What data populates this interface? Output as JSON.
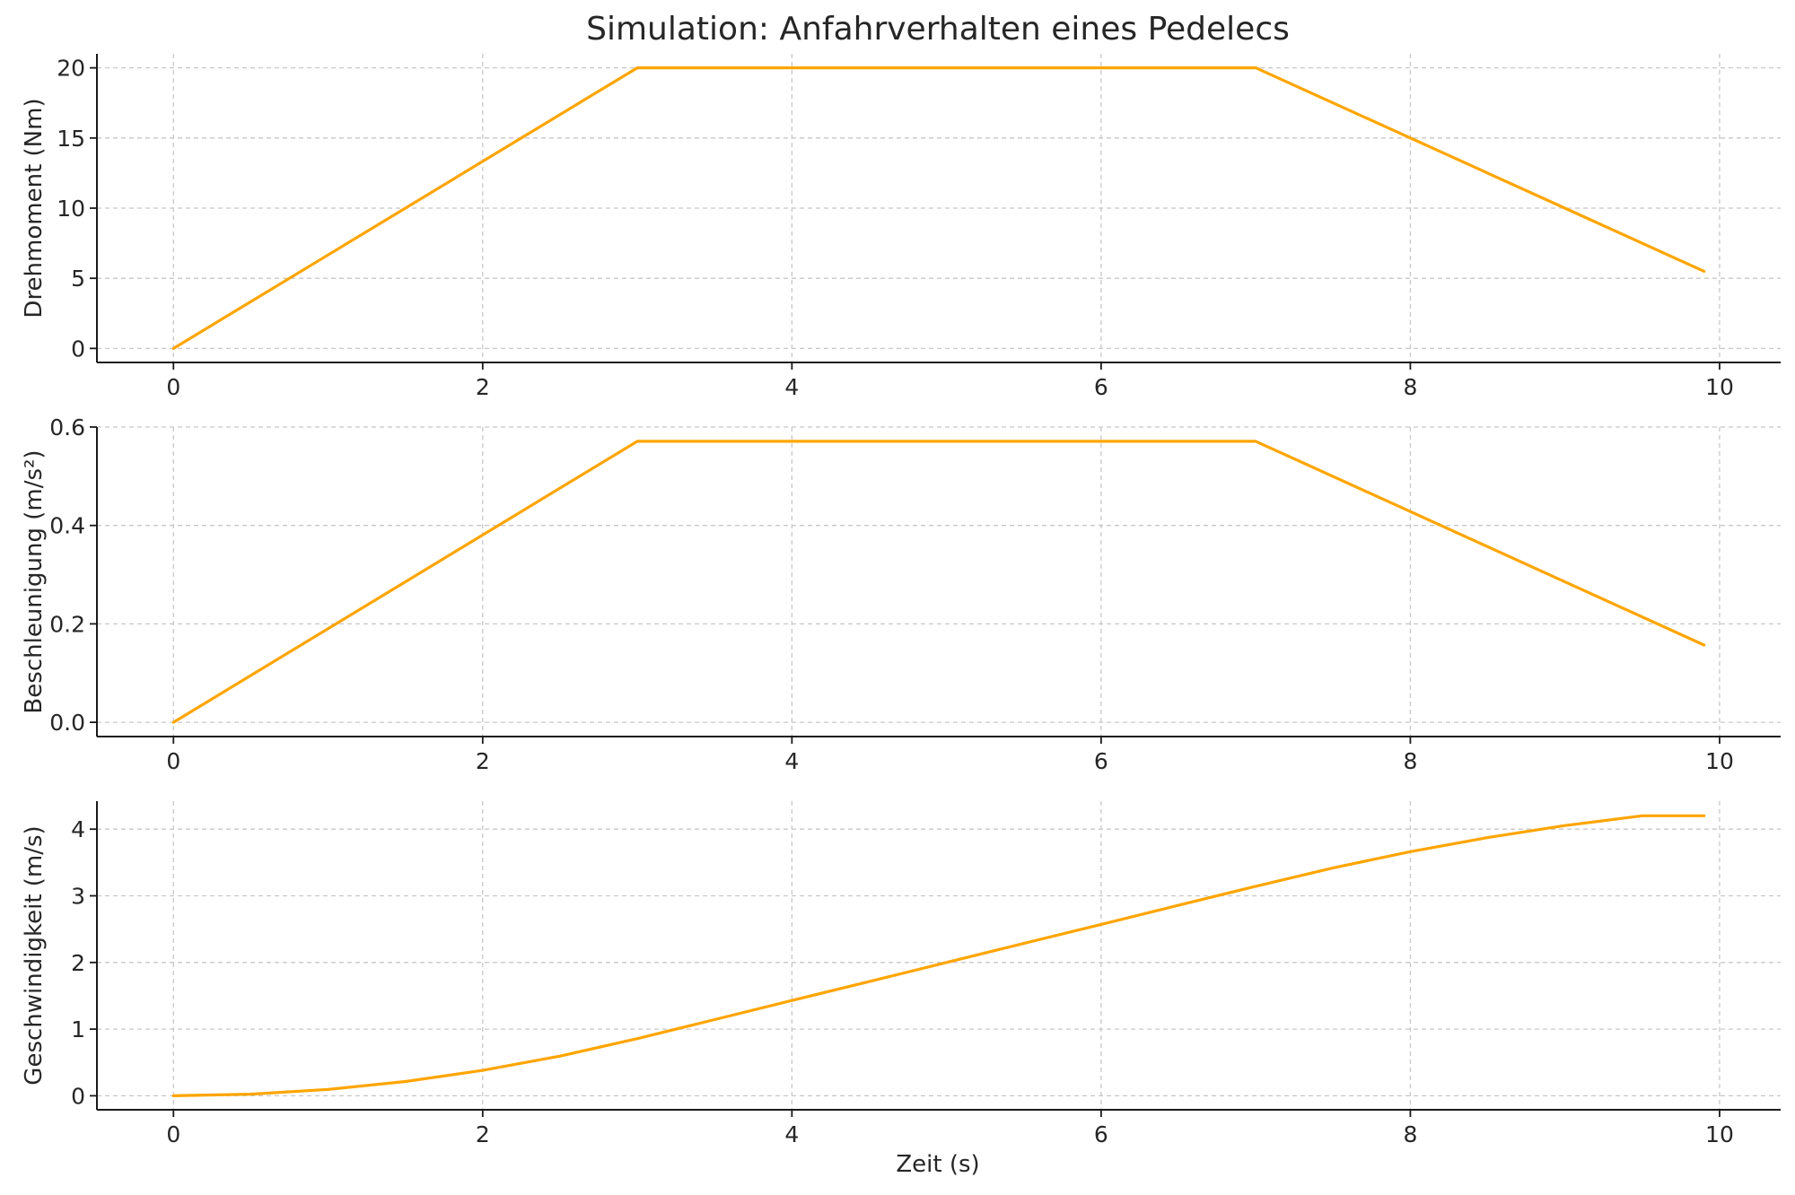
{
  "chart_data": {
    "type": "line",
    "title": "Simulation: Anfahrverhalten eines Pedelecs",
    "xlabel": "Zeit (s)",
    "grid": true,
    "line_color": "#FFA500",
    "panels": [
      {
        "ylabel": "Drehmoment (Nm)",
        "xlim": [
          -0.495,
          10.395
        ],
        "ylim": [
          -1.0,
          21.0
        ],
        "xticks": [
          0,
          2,
          4,
          6,
          8,
          10
        ],
        "yticks": [
          0,
          5,
          10,
          15,
          20
        ],
        "x": [
          0,
          3,
          7,
          9.9
        ],
        "y": [
          0,
          20,
          20,
          5.5
        ]
      },
      {
        "ylabel": "Beschleunigung (m/s²)",
        "xlim": [
          -0.495,
          10.395
        ],
        "ylim": [
          -0.029,
          0.6
        ],
        "xticks": [
          0,
          2,
          4,
          6,
          8,
          10
        ],
        "yticks": [
          0.0,
          0.2,
          0.4,
          0.6
        ],
        "ytick_decimals": 1,
        "x": [
          0,
          3,
          7,
          9.9
        ],
        "y": [
          0,
          0.571,
          0.571,
          0.157
        ]
      },
      {
        "ylabel": "Geschwindigkeit (m/s)",
        "xlim": [
          -0.495,
          10.395
        ],
        "ylim": [
          -0.21,
          4.42
        ],
        "xticks": [
          0,
          2,
          4,
          6,
          8,
          10
        ],
        "yticks": [
          0,
          1,
          2,
          3,
          4
        ],
        "x": [
          0,
          0.5,
          1,
          1.5,
          2,
          2.5,
          3,
          3.5,
          4,
          4.5,
          5,
          5.5,
          6,
          6.5,
          7,
          7.5,
          8,
          8.5,
          9,
          9.5,
          9.9
        ],
        "y": [
          0,
          0.024,
          0.095,
          0.214,
          0.381,
          0.595,
          0.857,
          1.143,
          1.429,
          1.714,
          2.0,
          2.286,
          2.571,
          2.857,
          3.143,
          3.418,
          3.662,
          3.873,
          4.054,
          4.2,
          4.2
        ]
      }
    ]
  }
}
